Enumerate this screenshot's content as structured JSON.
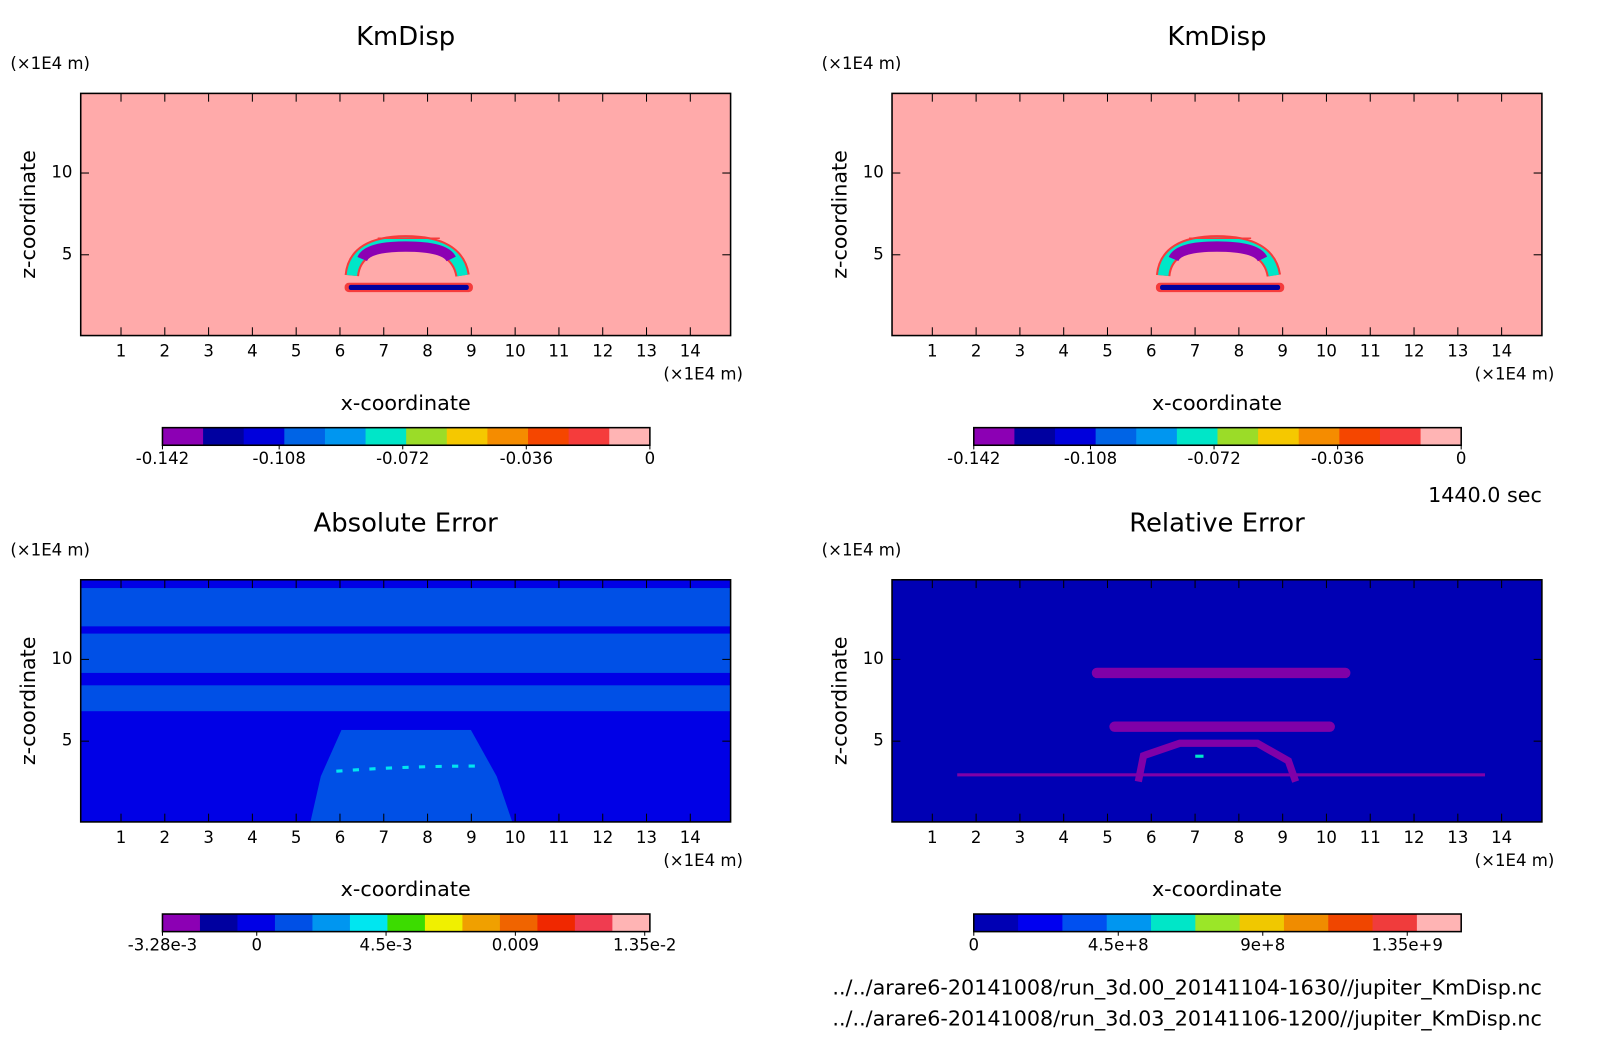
{
  "chart_data": [
    {
      "type": "contour",
      "title": "KmDisp",
      "xlabel": "x-coordinate",
      "ylabel": "z-coordinate",
      "xunit": "(×1E4 m)",
      "yunit": "(×1E4 m)",
      "xlim": [
        0.08,
        14.92
      ],
      "xticks": [
        1,
        2,
        3,
        4,
        5,
        6,
        7,
        8,
        9,
        10,
        11,
        12,
        13,
        14
      ],
      "ylim": [
        0.06,
        14.87
      ],
      "yticks": [
        5,
        10
      ],
      "field_color": "#ffaaaa",
      "colors": [
        "#8c00b4",
        "#0000a0",
        "#0000dc",
        "#0064e6",
        "#0096f0",
        "#00e6c8",
        "#9bdc28",
        "#f5c800",
        "#f58c00",
        "#f54600",
        "#f53c3c",
        "#ffb4b4"
      ],
      "clim": [
        -0.142,
        0
      ],
      "cticks": [
        -0.142,
        -0.108,
        -0.072,
        -0.036,
        0
      ]
    },
    {
      "type": "contour",
      "title": "KmDisp",
      "xlabel": "x-coordinate",
      "ylabel": "z-coordinate",
      "xunit": "(×1E4 m)",
      "yunit": "(×1E4 m)",
      "xlim": [
        0.08,
        14.92
      ],
      "xticks": [
        1,
        2,
        3,
        4,
        5,
        6,
        7,
        8,
        9,
        10,
        11,
        12,
        13,
        14
      ],
      "ylim": [
        0.06,
        14.87
      ],
      "yticks": [
        5,
        10
      ],
      "field_color": "#ffaaaa",
      "colors": [
        "#8c00b4",
        "#0000a0",
        "#0000dc",
        "#0064e6",
        "#0096f0",
        "#00e6c8",
        "#9bdc28",
        "#f5c800",
        "#f58c00",
        "#f54600",
        "#f53c3c",
        "#ffb4b4"
      ],
      "clim": [
        -0.142,
        0
      ],
      "cticks": [
        -0.142,
        -0.108,
        -0.072,
        -0.036,
        0
      ]
    },
    {
      "type": "contour",
      "title": "Absolute Error",
      "xlabel": "x-coordinate",
      "ylabel": "z-coordinate",
      "xunit": "(×1E4 m)",
      "yunit": "(×1E4 m)",
      "xlim": [
        0.08,
        14.92
      ],
      "xticks": [
        1,
        2,
        3,
        4,
        5,
        6,
        7,
        8,
        9,
        10,
        11,
        12,
        13,
        14
      ],
      "ylim": [
        0.06,
        14.87
      ],
      "yticks": [
        5,
        10
      ],
      "field_color": "#0000e6",
      "colors": [
        "#8c00b4",
        "#0000a0",
        "#0000e6",
        "#0050e6",
        "#0096f0",
        "#00e6f0",
        "#3cdc00",
        "#f0f000",
        "#f0a000",
        "#f06400",
        "#f02800",
        "#f03c50",
        "#ffb4b4"
      ],
      "clim": [
        -0.00328,
        0.01368
      ],
      "cticks": [
        {
          "value": -0.00328,
          "label": "-3.28e-3"
        },
        0,
        {
          "value": 0.0045,
          "label": "4.5e-3"
        },
        0.009,
        {
          "value": 0.0135,
          "label": "1.35e-2"
        }
      ]
    },
    {
      "type": "contour",
      "title": "Relative Error",
      "xlabel": "x-coordinate",
      "ylabel": "z-coordinate",
      "xunit": "(×1E4 m)",
      "yunit": "(×1E4 m)",
      "xlim": [
        0.08,
        14.92
      ],
      "xticks": [
        1,
        2,
        3,
        4,
        5,
        6,
        7,
        8,
        9,
        10,
        11,
        12,
        13,
        14
      ],
      "ylim": [
        0.06,
        14.87
      ],
      "yticks": [
        5,
        10
      ],
      "field_color": "#0000b4",
      "colors": [
        "#0000b4",
        "#0000f0",
        "#0050f0",
        "#0096f0",
        "#00e6c8",
        "#9be628",
        "#f0c800",
        "#f08c00",
        "#f04600",
        "#f03c3c",
        "#ffb4b4"
      ],
      "clim": [
        0,
        1518000000
      ],
      "cticks": [
        0,
        {
          "value": 450000000,
          "label": "4.5e+8"
        },
        {
          "value": 900000000,
          "label": "9e+8"
        },
        {
          "value": 1350000000,
          "label": "1.35e+9"
        }
      ]
    }
  ],
  "time_label": "1440.0 sec",
  "files": [
    "../../arare6-20141008/run_3d.00_20141104-1630//jupiter_KmDisp.nc",
    "../../arare6-20141008/run_3d.03_20141106-1200//jupiter_KmDisp.nc"
  ]
}
